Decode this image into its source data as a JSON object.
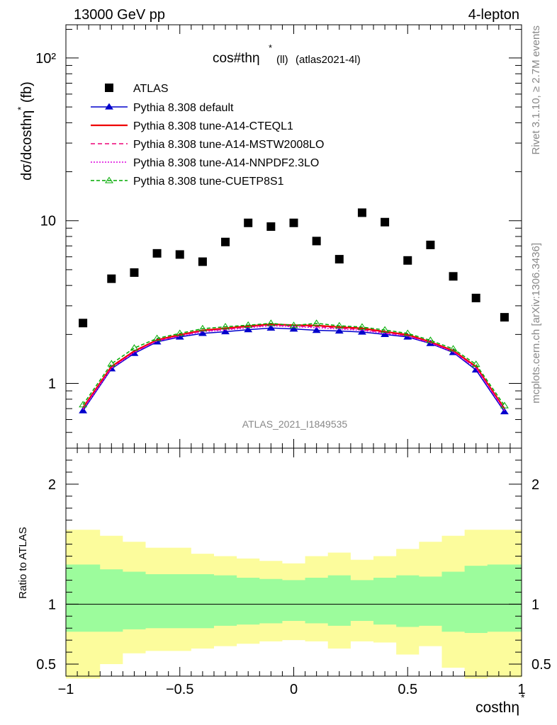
{
  "header": {
    "left": "13000 GeV pp",
    "right": "4-lepton"
  },
  "plot_title": "cos#thη",
  "plot_title_sup": "*",
  "plot_title_sub": "(ll)",
  "plot_title_tag": "(atlas2021-4l)",
  "watermark": "ATLAS_2021_I1849535",
  "side_top": "Rivet 3.1.10, ≥ 2.7M events",
  "side_bottom": "mcplots.cern.ch [arXiv:1306.3436]",
  "ylabel_main": "dσ/dcosthη",
  "ylabel_main_sup": "*",
  "ylabel_main_unit": "(fb)",
  "ylabel_ratio": "Ratio to ATLAS",
  "xlabel": "costhη",
  "xlabel_sup": "*",
  "colors": {
    "data": "#000000",
    "default": "#0000cc",
    "cteql1": "#ee0000",
    "mstw": "#ee0077",
    "nnpdf": "#dd00dd",
    "cuetp": "#00aa00",
    "band_inner": "#9cfc9c",
    "band_outer": "#fcfc9c"
  },
  "chart_data": [
    {
      "type": "scatter",
      "panel": "main",
      "ylog": true,
      "xlim": [
        -1.0,
        1.0
      ],
      "ylim": [
        0.4,
        160
      ],
      "x_ticks": [
        "−1",
        "−0.5",
        "0",
        "0.5",
        "1"
      ],
      "y_ticks": [
        "1",
        "10",
        "10²"
      ],
      "x": [
        -0.925,
        -0.8,
        -0.7,
        -0.6,
        -0.5,
        -0.4,
        -0.3,
        -0.2,
        -0.1,
        0.0,
        0.1,
        0.2,
        0.3,
        0.4,
        0.5,
        0.6,
        0.7,
        0.8,
        0.925
      ],
      "series": [
        {
          "name": "ATLAS",
          "key": "data",
          "marker": "square",
          "values": [
            2.35,
            4.4,
            4.8,
            6.3,
            6.2,
            5.6,
            7.4,
            9.7,
            9.2,
            9.7,
            7.5,
            5.8,
            11.2,
            9.8,
            5.7,
            7.1,
            4.55,
            3.35,
            2.55
          ]
        },
        {
          "name": "Pythia 8.308 default",
          "key": "default",
          "marker": "triangle",
          "dash": "",
          "values": [
            0.68,
            1.23,
            1.53,
            1.8,
            1.93,
            2.03,
            2.08,
            2.14,
            2.19,
            2.16,
            2.12,
            2.1,
            2.07,
            2.0,
            1.93,
            1.76,
            1.55,
            1.21,
            0.67
          ]
        },
        {
          "name": "Pythia 8.308 tune-A14-CTEQL1",
          "key": "cteql1",
          "marker": "",
          "dash": "",
          "values": [
            0.71,
            1.27,
            1.58,
            1.85,
            1.99,
            2.12,
            2.18,
            2.25,
            2.31,
            2.28,
            2.27,
            2.22,
            2.18,
            2.08,
            1.99,
            1.8,
            1.59,
            1.27,
            0.7
          ]
        },
        {
          "name": "Pythia 8.308 tune-A14-MSTW2008LO",
          "key": "mstw",
          "marker": "",
          "dash": "6,4",
          "values": [
            0.7,
            1.25,
            1.56,
            1.83,
            1.96,
            2.1,
            2.15,
            2.22,
            2.28,
            2.25,
            2.23,
            2.19,
            2.14,
            2.05,
            1.96,
            1.78,
            1.57,
            1.25,
            0.69
          ]
        },
        {
          "name": "Pythia 8.308 tune-A14-NNPDF2.3LO",
          "key": "nnpdf",
          "marker": "",
          "dash": "2,2",
          "values": [
            0.69,
            1.24,
            1.55,
            1.82,
            1.95,
            2.08,
            2.13,
            2.2,
            2.26,
            2.23,
            2.2,
            2.16,
            2.12,
            2.03,
            1.95,
            1.77,
            1.56,
            1.24,
            0.68
          ]
        },
        {
          "name": "Pythia 8.308 tune-CUETP8S1",
          "key": "cuetp",
          "marker": "triangle-open",
          "dash": "5,3",
          "values": [
            0.74,
            1.32,
            1.65,
            1.89,
            2.03,
            2.17,
            2.23,
            2.28,
            2.34,
            2.27,
            2.34,
            2.26,
            2.22,
            2.13,
            2.03,
            1.84,
            1.63,
            1.31,
            0.73
          ]
        }
      ]
    },
    {
      "type": "area",
      "panel": "ratio",
      "xlim": [
        -1.0,
        1.0
      ],
      "ylim": [
        0.4,
        2.3
      ],
      "y_ticks": [
        "0.5",
        "1",
        "2"
      ],
      "reference": 1.0,
      "bin_edges": [
        -1.0,
        -0.85,
        -0.75,
        -0.65,
        -0.55,
        -0.45,
        -0.35,
        -0.25,
        -0.15,
        -0.05,
        0.05,
        0.15,
        0.25,
        0.35,
        0.45,
        0.55,
        0.65,
        0.75,
        0.85,
        1.0
      ],
      "inner_band": {
        "upper": [
          1.33,
          1.29,
          1.27,
          1.25,
          1.25,
          1.25,
          1.24,
          1.22,
          1.21,
          1.2,
          1.22,
          1.24,
          1.2,
          1.22,
          1.24,
          1.23,
          1.27,
          1.32,
          1.33
        ],
        "lower": [
          0.77,
          0.77,
          0.79,
          0.8,
          0.8,
          0.8,
          0.82,
          0.83,
          0.84,
          0.86,
          0.84,
          0.82,
          0.86,
          0.83,
          0.81,
          0.82,
          0.77,
          0.76,
          0.77
        ]
      },
      "outer_band": {
        "upper": [
          1.62,
          1.57,
          1.52,
          1.47,
          1.47,
          1.42,
          1.4,
          1.38,
          1.36,
          1.34,
          1.4,
          1.43,
          1.37,
          1.4,
          1.46,
          1.52,
          1.57,
          1.62,
          1.62
        ],
        "lower": [
          0.38,
          0.5,
          0.59,
          0.61,
          0.61,
          0.63,
          0.65,
          0.67,
          0.69,
          0.7,
          0.69,
          0.63,
          0.69,
          0.68,
          0.58,
          0.65,
          0.47,
          0.38,
          0.39
        ]
      }
    }
  ]
}
